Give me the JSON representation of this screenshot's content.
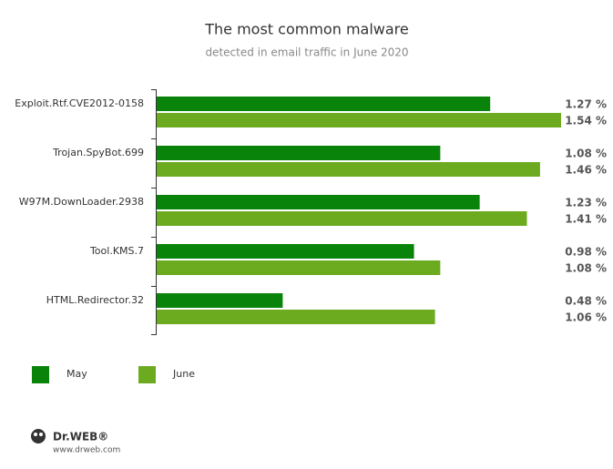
{
  "chart_data": {
    "type": "bar",
    "orientation": "horizontal",
    "title": "The most common malware",
    "subtitle": "detected in email traffic in June 2020",
    "categories": [
      "Exploit.Rtf.CVE2012-0158",
      "Trojan.SpyBot.699",
      "W97M.DownLoader.2938",
      "Tool.KMS.7",
      "HTML.Redirector.32"
    ],
    "series": [
      {
        "name": "May",
        "color": "#0a830a",
        "values": [
          1.27,
          1.08,
          1.23,
          0.98,
          0.48
        ],
        "value_labels": [
          "1.27 %",
          "1.08 %",
          "1.23 %",
          "0.98 %",
          "0.48 %"
        ]
      },
      {
        "name": "June",
        "color": "#6cab1f",
        "values": [
          1.54,
          1.46,
          1.41,
          1.08,
          1.06
        ],
        "value_labels": [
          "1.54 %",
          "1.46 %",
          "1.41 %",
          "1.08 %",
          "1.06 %"
        ]
      }
    ],
    "legend": "bottom-left"
  },
  "footer": {
    "brand": "Dr.WEB®",
    "url": "www.drweb.com"
  }
}
